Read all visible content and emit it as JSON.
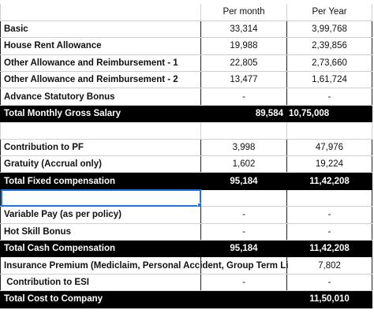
{
  "table": {
    "header": {
      "per_month": "Per month",
      "per_year": "Per Year"
    },
    "rows": [
      {
        "label": "Basic",
        "per_month": "33,314",
        "per_year": "3,99,768"
      },
      {
        "label": "House Rent Allowance",
        "per_month": "19,988",
        "per_year": "2,39,856"
      },
      {
        "label": "Other Allowance and Reimbursement - 1",
        "per_month": "22,805",
        "per_year": "2,73,660"
      },
      {
        "label": "Other Allowance and Reimbursement - 2",
        "per_month": "13,477",
        "per_year": "1,61,724"
      },
      {
        "label": "Advance Statutory Bonus",
        "per_month": "-",
        "per_year": "-"
      },
      {
        "label": "Total Monthly Gross Salary",
        "per_month": "89,584",
        "per_year": "10,75,008"
      },
      {
        "label": "Contribution to PF",
        "per_month": "3,998",
        "per_year": "47,976"
      },
      {
        "label": "Gratuity (Accrual only)",
        "per_month": "1,602",
        "per_year": "19,224"
      },
      {
        "label": "Total Fixed compensation",
        "per_month": "95,184",
        "per_year": "11,42,208"
      },
      {
        "label": "Variable Pay (as per policy)",
        "per_month": "-",
        "per_year": "-"
      },
      {
        "label": "Hot Skill Bonus",
        "per_month": "-",
        "per_year": "-"
      },
      {
        "label": "Total Cash Compensation",
        "per_month": "95,184",
        "per_year": "11,42,208"
      },
      {
        "label": "Insurance Premium (Mediclaim, Personal Accident, Group Term Li",
        "per_year": "7,802"
      },
      {
        "label": " Contribution to ESI",
        "per_month": "-",
        "per_year": "-"
      },
      {
        "label": "Total Cost to Company",
        "per_year": "11,50,010"
      }
    ]
  }
}
